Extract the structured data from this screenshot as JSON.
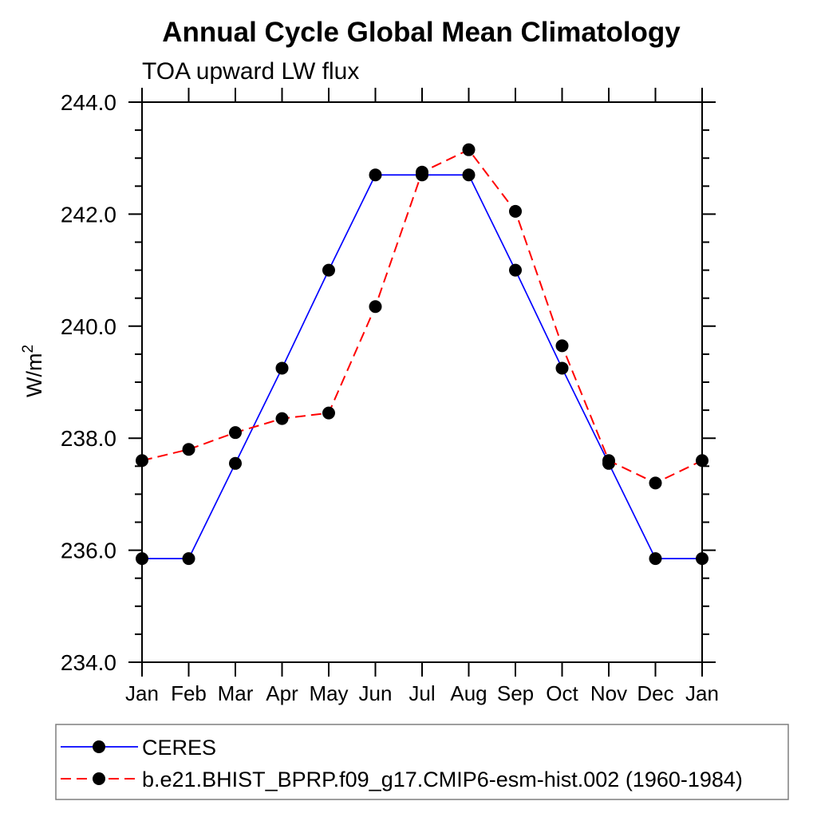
{
  "chart_data": {
    "type": "line",
    "title": "Annual Cycle Global Mean Climatology",
    "subtitle": "TOA upward LW flux",
    "ylabel_base": "W/m",
    "ylabel_sup": "2",
    "categories": [
      "Jan",
      "Feb",
      "Mar",
      "Apr",
      "May",
      "Jun",
      "Jul",
      "Aug",
      "Sep",
      "Oct",
      "Nov",
      "Dec",
      "Jan"
    ],
    "ylim": [
      234.0,
      244.0
    ],
    "ytick_major": [
      234.0,
      236.0,
      238.0,
      240.0,
      242.0,
      244.0
    ],
    "ytick_major_labels": [
      "234.0",
      "236.0",
      "238.0",
      "240.0",
      "242.0",
      "244.0"
    ],
    "ytick_minor_step": 0.5,
    "grid": false,
    "legend_position": "bottom",
    "axis_color": "#000000",
    "marker_color": "#000000",
    "series": [
      {
        "name": "CERES",
        "color": "#0000ff",
        "line_style": "solid",
        "values": [
          235.85,
          235.85,
          237.55,
          239.25,
          241.0,
          242.7,
          242.7,
          242.7,
          241.0,
          239.25,
          237.55,
          235.85,
          235.85
        ]
      },
      {
        "name": "b.e21.BHIST_BPRP.f09_g17.CMIP6-esm-hist.002 (1960-1984)",
        "color": "#ff0000",
        "line_style": "dashed",
        "values": [
          237.6,
          237.8,
          238.1,
          238.35,
          238.45,
          240.35,
          242.75,
          243.15,
          242.05,
          239.65,
          237.6,
          237.2,
          237.6
        ]
      }
    ]
  }
}
